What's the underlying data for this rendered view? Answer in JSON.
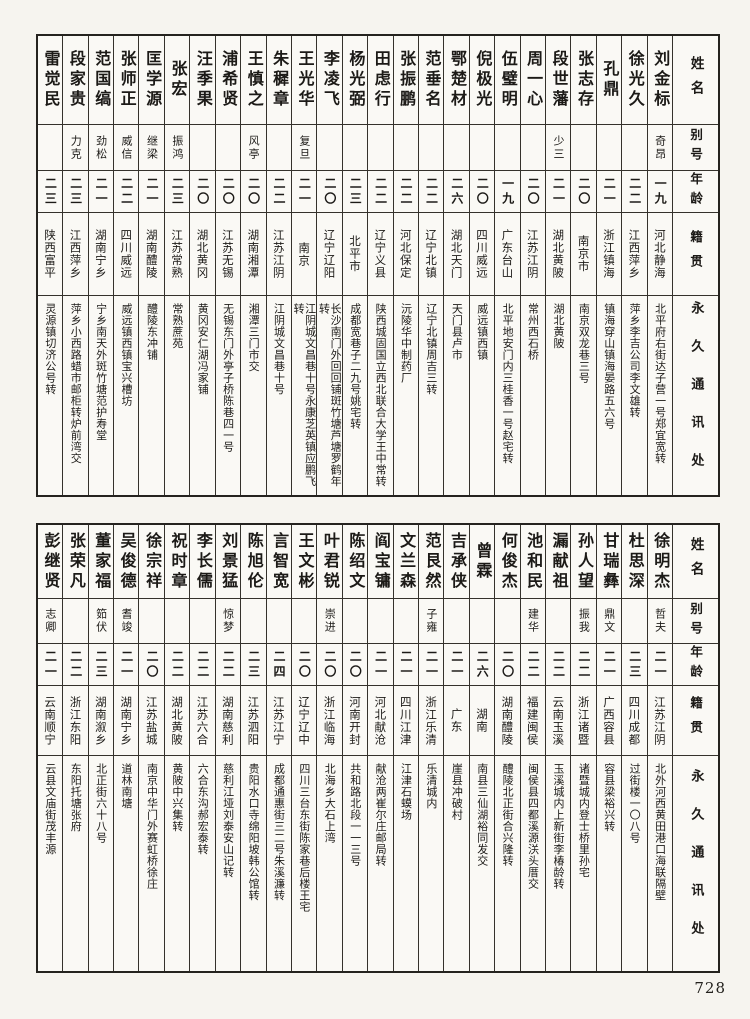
{
  "page_number": "728",
  "reading_order": "right-to-left",
  "labels": {
    "name": "姓名",
    "alias": "别号",
    "age": "年龄",
    "native": "籍贯",
    "address": "永久通讯处"
  },
  "tables": [
    {
      "position": "top",
      "entries": [
        {
          "name": "刘金标",
          "alias": "奇昂",
          "age": "一九",
          "native": "河北静海",
          "address": "北平府右街达子营一号郑宜宽转"
        },
        {
          "name": "徐光久",
          "alias": "",
          "age": "二二",
          "native": "江西萍乡",
          "address": "萍乡李吉公司李文雄转"
        },
        {
          "name": "孔鼎",
          "alias": "",
          "age": "二一",
          "native": "浙江镇海",
          "address": "镇海穿山镇海晏路五六号"
        },
        {
          "name": "张志存",
          "alias": "",
          "age": "二〇",
          "native": "南京市",
          "address": "南京双龙巷三号"
        },
        {
          "name": "段世藩",
          "alias": "少三",
          "age": "二一",
          "native": "湖北黄陂",
          "address": "湖北黄陂"
        },
        {
          "name": "周一心",
          "alias": "",
          "age": "二〇",
          "native": "江苏江阴",
          "address": "常州西石桥"
        },
        {
          "name": "伍璧明",
          "alias": "",
          "age": "一九",
          "native": "广东台山",
          "address": "北平地安门内三桂香一号赵宅转"
        },
        {
          "name": "倪极光",
          "alias": "",
          "age": "二〇",
          "native": "四川威远",
          "address": "威远镇西镇"
        },
        {
          "name": "鄂楚材",
          "alias": "",
          "age": "二六",
          "native": "湖北天门",
          "address": "天门县卢市"
        },
        {
          "name": "范垂名",
          "alias": "",
          "age": "二二",
          "native": "辽宁北镇",
          "address": "辽宁北镇周吉三转"
        },
        {
          "name": "张振鹏",
          "alias": "",
          "age": "二二",
          "native": "河北保定",
          "address": "沅陵华中制药厂"
        },
        {
          "name": "田虑行",
          "alias": "",
          "age": "二二",
          "native": "辽宁义县",
          "address": "陕西城固国立西北联合大学王中常转"
        },
        {
          "name": "杨光弼",
          "alias": "",
          "age": "二三",
          "native": "北平市",
          "address": "成都宽巷子二九号姚宅转"
        },
        {
          "name": "李凌飞",
          "alias": "",
          "age": "二〇",
          "native": "辽宁辽阳",
          "address": "长沙南门外回回铺斑竹塘芦塘罗鹤年转"
        },
        {
          "name": "王光华",
          "alias": "复旦",
          "age": "二一",
          "native": "南京",
          "address": "江阴城文昌巷十号永康芝英镇应鹏飞转"
        },
        {
          "name": "朱穉章",
          "alias": "",
          "age": "二二",
          "native": "江苏江阴",
          "address": "江阴城文昌巷十号"
        },
        {
          "name": "王慎之",
          "alias": "风亭",
          "age": "二〇",
          "native": "湖南湘潭",
          "address": "湘潭三门市交"
        },
        {
          "name": "浦希贤",
          "alias": "",
          "age": "二〇",
          "native": "江苏无锡",
          "address": "无锡东门外亭子桥陈巷四一号"
        },
        {
          "name": "汪季果",
          "alias": "",
          "age": "二〇",
          "native": "湖北黄冈",
          "address": "黄冈安仁湖冯家铺"
        },
        {
          "name": "张宏",
          "alias": "振鸿",
          "age": "二三",
          "native": "江苏常熟",
          "address": "常熟蔗苑"
        },
        {
          "name": "匡学源",
          "alias": "继梁",
          "age": "二一",
          "native": "湖南醴陵",
          "address": "醴陵东冲铺"
        },
        {
          "name": "张师正",
          "alias": "威信",
          "age": "二二",
          "native": "四川威远",
          "address": "威远镇西镇宝兴槽坊"
        },
        {
          "name": "范国缟",
          "alias": "劲松",
          "age": "二一",
          "native": "湖南宁乡",
          "address": "宁乡南天外斑竹塘范护寿堂"
        },
        {
          "name": "段家贵",
          "alias": "力克",
          "age": "二三",
          "native": "江西萍乡",
          "address": "萍乡小西路蜡市邮柜转炉前湾交"
        },
        {
          "name": "雷觉民",
          "alias": "",
          "age": "二三",
          "native": "陕西富平",
          "address": "灵源镇切济公号转"
        }
      ]
    },
    {
      "position": "bottom",
      "entries": [
        {
          "name": "徐明杰",
          "alias": "哲夫",
          "age": "二一",
          "native": "江苏江阴",
          "address": "北外河西黄田港口海联隔壁"
        },
        {
          "name": "杜思深",
          "alias": "",
          "age": "二三",
          "native": "四川成都",
          "address": "过街楼一〇八号"
        },
        {
          "name": "甘瑞彝",
          "alias": "鼎文",
          "age": "二一",
          "native": "广西容县",
          "address": "容县梁裕兴转"
        },
        {
          "name": "孙人望",
          "alias": "振我",
          "age": "二二",
          "native": "浙江诸暨",
          "address": "诸暨城内登士桥里孙宅"
        },
        {
          "name": "漏献祖",
          "alias": "",
          "age": "二二",
          "native": "云南玉溪",
          "address": "玉溪城内上新街李椿龄转"
        },
        {
          "name": "池和民",
          "alias": "建华",
          "age": "二二",
          "native": "福建闽侯",
          "address": "闽侯县四都溪源浂头厝交"
        },
        {
          "name": "何俊杰",
          "alias": "",
          "age": "二〇",
          "native": "湖南醴陵",
          "address": "醴陵北正街合兴隆转"
        },
        {
          "name": "曾霖",
          "alias": "",
          "age": "二六",
          "native": "湖南",
          "address": "南县三仙湖裕同发交"
        },
        {
          "name": "吉承侠",
          "alias": "",
          "age": "二一",
          "native": "广东",
          "address": "崖县冲破村"
        },
        {
          "name": "范艮然",
          "alias": "子雍",
          "age": "二一",
          "native": "浙江乐清",
          "address": "乐清城内"
        },
        {
          "name": "文兰森",
          "alias": "",
          "age": "二一",
          "native": "四川江津",
          "address": "江津石蟆场"
        },
        {
          "name": "阎宝镛",
          "alias": "",
          "age": "二一",
          "native": "河北献沧",
          "address": "献沧两崔尔庄邮局转"
        },
        {
          "name": "陈绍文",
          "alias": "",
          "age": "二〇",
          "native": "河南开封",
          "address": "共和路北段一一三号"
        },
        {
          "name": "叶君锐",
          "alias": "崇进",
          "age": "二〇",
          "native": "浙江临海",
          "address": "北海乡大石上湾"
        },
        {
          "name": "王文彬",
          "alias": "",
          "age": "二〇",
          "native": "辽宁辽中",
          "address": "四川三台东街陈家巷后楼王宅"
        },
        {
          "name": "言智宽",
          "alias": "",
          "age": "二四",
          "native": "江苏江宁",
          "address": "成都通惠街三二号朱溪濂转"
        },
        {
          "name": "陈旭伦",
          "alias": "",
          "age": "二三",
          "native": "江苏泗阳",
          "address": "贵阳水口寺绵阳坡韩公馆转"
        },
        {
          "name": "刘景猛",
          "alias": "惊梦",
          "age": "二二",
          "native": "湖南慈利",
          "address": "慈利江垭刘泰安山记转"
        },
        {
          "name": "李长儒",
          "alias": "",
          "age": "二二",
          "native": "江苏六合",
          "address": "六合东沟郝宏泰转"
        },
        {
          "name": "祝时章",
          "alias": "",
          "age": "二二",
          "native": "湖北黄陂",
          "address": "黄陂中兴集转"
        },
        {
          "name": "徐宗祥",
          "alias": "",
          "age": "二〇",
          "native": "江苏盐城",
          "address": "南京中华门外赛虹桥徐庄"
        },
        {
          "name": "吴俊德",
          "alias": "耆竣",
          "age": "二一",
          "native": "湖南宁乡",
          "address": "道林南塘"
        },
        {
          "name": "董家福",
          "alias": "筎伏",
          "age": "二三",
          "native": "湖南溆乡",
          "address": "北正街六十八号"
        },
        {
          "name": "张荣凡",
          "alias": "",
          "age": "二二",
          "native": "浙江东阳",
          "address": "东阳托塘张府"
        },
        {
          "name": "彭继贤",
          "alias": "志卿",
          "age": "二一",
          "native": "云南顺宁",
          "address": "云县文庙街茂丰源"
        }
      ]
    }
  ]
}
